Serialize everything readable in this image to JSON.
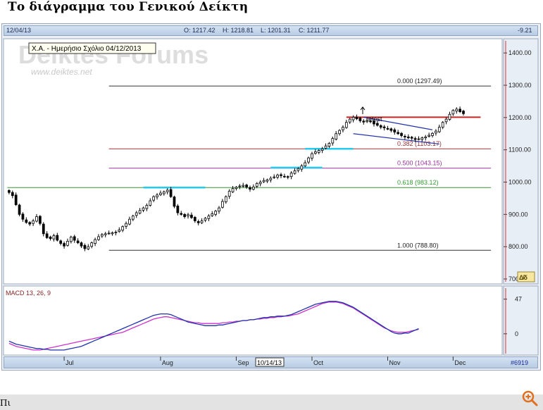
{
  "page_title": "Το διάγραμμα του Γενικού Δείκτη",
  "footer_text": "Πι",
  "header": {
    "date": "12/04/13",
    "open": "O: 1217.42",
    "high": "H: 1218.81",
    "low": "L: 1201.31",
    "close": "C: 1211.77",
    "change": "-9.21"
  },
  "annotation_label": "Χ.Α. - Ημερήσιο Σχόλιο 04/12/2013",
  "watermark": {
    "main": "Deiktes Forums",
    "sub": "www.deiktes.net"
  },
  "retest_label": "retest",
  "footer_id": "#6919",
  "cursor_date": "10/14/13",
  "macd_label": "MACD 13, 26, 9",
  "colors": {
    "candle_up": "#ffffff",
    "candle_down": "#000000",
    "macd_line": "#2233aa",
    "signal_line": "#cc33cc",
    "resistance": "#cc2222",
    "channel": "#2233aa",
    "support_highlight": "#22ccee",
    "fib_0": "#333333",
    "fib_0382": "#993333",
    "fib_05": "#993399",
    "fib_0618": "#339933",
    "fib_1": "#333333"
  },
  "icons": [
    "zoom-in-icon",
    "delta-icon"
  ],
  "chart_data": [
    {
      "type": "candlestick",
      "title": "",
      "ylim": [
        700,
        1420
      ],
      "y_ticks": [
        "1400.00",
        "1300.00",
        "1200.00",
        "1100.00",
        "1000.00",
        "900.00",
        "800.00",
        "700"
      ],
      "y_tick_values": [
        1400,
        1300,
        1200,
        1100,
        1000,
        900,
        800,
        700
      ],
      "x_tick_labels": [
        "Jul",
        "Aug",
        "Sep",
        "Oct",
        "Nov",
        "Dec"
      ],
      "x_tick_days": [
        17,
        45,
        67,
        89,
        111,
        130
      ],
      "x_range_days": [
        0,
        142
      ],
      "fib_levels": [
        {
          "label": "0.000 (1297.49)",
          "value": 1297.49
        },
        {
          "label": "0.382 (1103.17)",
          "value": 1103.17
        },
        {
          "label": "0.500 (1043.15)",
          "value": 1043.15
        },
        {
          "label": "0.618 (983.12)",
          "value": 983.12
        },
        {
          "label": "1.000 (788.80)",
          "value": 788.8
        }
      ],
      "fib_start_day": 30,
      "fib_end_day": 141,
      "resistance": {
        "value": 1201,
        "start_day": 99,
        "end_day": 138
      },
      "channel_upper": {
        "day1": 104,
        "y1": 1201,
        "day2": 124,
        "y2": 1162
      },
      "channel_lower": {
        "day1": 101,
        "y1": 1150,
        "day2": 126,
        "y2": 1118
      },
      "support_highlights": [
        {
          "value": 1103,
          "start_day": 87,
          "end_day": 101
        },
        {
          "value": 1045,
          "start_day": 77,
          "end_day": 92
        },
        {
          "value": 983,
          "start_day": 40,
          "end_day": 58
        }
      ],
      "close": [
        968,
        958,
        930,
        900,
        885,
        875,
        870,
        880,
        893,
        872,
        840,
        828,
        825,
        834,
        820,
        810,
        802,
        817,
        830,
        820,
        812,
        802,
        794,
        800,
        812,
        822,
        831,
        838,
        840,
        842,
        843,
        845,
        852,
        862,
        872,
        885,
        895,
        905,
        912,
        920,
        928,
        942,
        955,
        960,
        966,
        970,
        975,
        955,
        925,
        905,
        900,
        893,
        899,
        890,
        880,
        874,
        880,
        888,
        895,
        902,
        910,
        920,
        940,
        955,
        972,
        980,
        984,
        988,
        990,
        985,
        978,
        985,
        996,
        1000,
        1005,
        1007,
        1012,
        1016,
        1022,
        1020,
        1017,
        1015,
        1028,
        1035,
        1042,
        1050,
        1060,
        1075,
        1088,
        1094,
        1098,
        1103,
        1112,
        1120,
        1135,
        1150,
        1160,
        1170,
        1185,
        1195,
        1201,
        1196,
        1190,
        1186,
        1191,
        1188,
        1180,
        1176,
        1170,
        1168,
        1165,
        1160,
        1155,
        1150,
        1144,
        1140,
        1137,
        1136,
        1132,
        1134,
        1137,
        1140,
        1145,
        1151,
        1158,
        1170,
        1185,
        1195,
        1210,
        1222,
        1226,
        1218,
        1212
      ],
      "macd_ylim": [
        -25,
        60
      ],
      "macd_ticks": [
        "47",
        "0"
      ],
      "macd_tick_values": [
        47,
        0
      ],
      "macd": [
        -10,
        -12,
        -14,
        -15,
        -16,
        -17,
        -18,
        -19,
        -20,
        -20,
        -21,
        -21,
        -22,
        -22,
        -22,
        -22,
        -22,
        -21,
        -20,
        -19,
        -18,
        -17,
        -15,
        -13,
        -11,
        -9,
        -7,
        -5,
        -3,
        -1,
        1,
        3,
        5,
        7,
        9,
        11,
        13,
        15,
        17,
        19,
        21,
        23,
        25,
        26,
        27,
        27,
        27,
        26,
        24,
        22,
        20,
        18,
        16,
        15,
        14,
        13,
        12,
        11,
        11,
        11,
        11,
        12,
        12,
        13,
        14,
        15,
        16,
        17,
        18,
        18,
        19,
        19,
        20,
        21,
        22,
        22,
        23,
        23,
        24,
        24,
        24,
        25,
        26,
        28,
        30,
        32,
        34,
        36,
        38,
        40,
        41,
        42,
        43,
        44,
        44,
        44,
        43,
        42,
        40,
        38,
        36,
        33,
        30,
        27,
        24,
        21,
        18,
        15,
        12,
        9,
        6,
        3,
        1,
        0,
        0,
        1,
        1,
        3,
        5,
        7
      ],
      "signal": [
        -13,
        -15,
        -17,
        -18,
        -19,
        -20,
        -21,
        -22,
        -22,
        -22,
        -21,
        -20,
        -19,
        -18,
        -17,
        -16,
        -15,
        -14,
        -13,
        -12,
        -11,
        -10,
        -9,
        -8,
        -7,
        -6,
        -5,
        -4,
        -3,
        -2,
        -1,
        0,
        1,
        2,
        4,
        6,
        8,
        10,
        12,
        14,
        16,
        18,
        20,
        21,
        22,
        23,
        23,
        22,
        21,
        20,
        19,
        18,
        17,
        16,
        15,
        15,
        14,
        14,
        14,
        14,
        14,
        14,
        15,
        15,
        16,
        16,
        17,
        17,
        18,
        18,
        19,
        19,
        20,
        20,
        21,
        21,
        22,
        22,
        23,
        23,
        24,
        24,
        25,
        26,
        27,
        29,
        31,
        33,
        35,
        37,
        39,
        41,
        42,
        43,
        43,
        43,
        42,
        41,
        39,
        37,
        35,
        32,
        29,
        26,
        23,
        20,
        17,
        14,
        11,
        8,
        6,
        4,
        3,
        2,
        2,
        2,
        3,
        4,
        5,
        6
      ]
    }
  ]
}
